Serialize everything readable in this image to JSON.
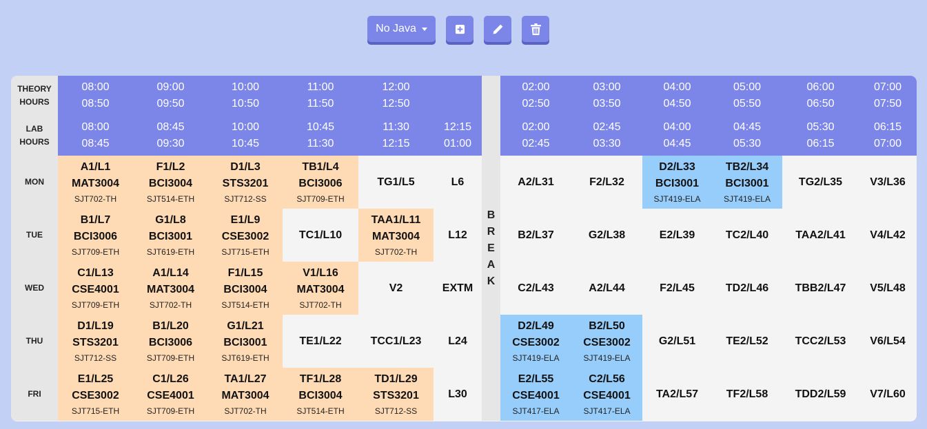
{
  "toolbar": {
    "dropdown_label": "No Java",
    "icons": [
      "plus-square-icon",
      "pencil-icon",
      "trash-icon"
    ]
  },
  "timetable": {
    "theory_label": [
      "THEORY",
      "HOURS"
    ],
    "lab_label": [
      "LAB",
      "HOURS"
    ],
    "break_letters": [
      "B",
      "R",
      "E",
      "A",
      "K"
    ],
    "theory_times": [
      [
        "08:00",
        "08:50"
      ],
      [
        "09:00",
        "09:50"
      ],
      [
        "10:00",
        "10:50"
      ],
      [
        "11:00",
        "11:50"
      ],
      [
        "12:00",
        "12:50"
      ],
      [
        "",
        ""
      ],
      [
        "02:00",
        "02:50"
      ],
      [
        "03:00",
        "03:50"
      ],
      [
        "04:00",
        "04:50"
      ],
      [
        "05:00",
        "05:50"
      ],
      [
        "06:00",
        "06:50"
      ],
      [
        "07:00",
        "07:50"
      ]
    ],
    "lab_times": [
      [
        "08:00",
        "08:45"
      ],
      [
        "08:45",
        "09:30"
      ],
      [
        "10:00",
        "10:45"
      ],
      [
        "10:45",
        "11:30"
      ],
      [
        "11:30",
        "12:15"
      ],
      [
        "12:15",
        "01:00"
      ],
      [
        "02:00",
        "02:45"
      ],
      [
        "02:45",
        "03:30"
      ],
      [
        "04:00",
        "04:45"
      ],
      [
        "04:45",
        "05:30"
      ],
      [
        "05:30",
        "06:15"
      ],
      [
        "06:15",
        "07:00"
      ]
    ],
    "days": [
      {
        "name": "MON",
        "cells": [
          {
            "slot": "A1/L1",
            "course": "MAT3004",
            "room": "SJT702-TH",
            "type": "theory"
          },
          {
            "slot": "F1/L2",
            "course": "BCI3004",
            "room": "SJT514-ETH",
            "type": "theory"
          },
          {
            "slot": "D1/L3",
            "course": "STS3201",
            "room": "SJT712-SS",
            "type": "theory"
          },
          {
            "slot": "TB1/L4",
            "course": "BCI3006",
            "room": "SJT709-ETH",
            "type": "theory"
          },
          {
            "slot": "TG1/L5",
            "course": "",
            "room": "",
            "type": "empty"
          },
          {
            "slot": "L6",
            "course": "",
            "room": "",
            "type": "empty"
          },
          {
            "slot": "A2/L31",
            "course": "",
            "room": "",
            "type": "empty"
          },
          {
            "slot": "F2/L32",
            "course": "",
            "room": "",
            "type": "empty"
          },
          {
            "slot": "D2/L33",
            "course": "BCI3001",
            "room": "SJT419-ELA",
            "type": "lab"
          },
          {
            "slot": "TB2/L34",
            "course": "BCI3001",
            "room": "SJT419-ELA",
            "type": "lab"
          },
          {
            "slot": "TG2/L35",
            "course": "",
            "room": "",
            "type": "empty"
          },
          {
            "slot": "V3/L36",
            "course": "",
            "room": "",
            "type": "empty"
          }
        ]
      },
      {
        "name": "TUE",
        "cells": [
          {
            "slot": "B1/L7",
            "course": "BCI3006",
            "room": "SJT709-ETH",
            "type": "theory"
          },
          {
            "slot": "G1/L8",
            "course": "BCI3001",
            "room": "SJT619-ETH",
            "type": "theory"
          },
          {
            "slot": "E1/L9",
            "course": "CSE3002",
            "room": "SJT715-ETH",
            "type": "theory"
          },
          {
            "slot": "TC1/L10",
            "course": "",
            "room": "",
            "type": "empty"
          },
          {
            "slot": "TAA1/L11",
            "course": "MAT3004",
            "room": "SJT702-TH",
            "type": "theory"
          },
          {
            "slot": "L12",
            "course": "",
            "room": "",
            "type": "empty"
          },
          {
            "slot": "B2/L37",
            "course": "",
            "room": "",
            "type": "empty"
          },
          {
            "slot": "G2/L38",
            "course": "",
            "room": "",
            "type": "empty"
          },
          {
            "slot": "E2/L39",
            "course": "",
            "room": "",
            "type": "empty"
          },
          {
            "slot": "TC2/L40",
            "course": "",
            "room": "",
            "type": "empty"
          },
          {
            "slot": "TAA2/L41",
            "course": "",
            "room": "",
            "type": "empty"
          },
          {
            "slot": "V4/L42",
            "course": "",
            "room": "",
            "type": "empty"
          }
        ]
      },
      {
        "name": "WED",
        "cells": [
          {
            "slot": "C1/L13",
            "course": "CSE4001",
            "room": "SJT709-ETH",
            "type": "theory"
          },
          {
            "slot": "A1/L14",
            "course": "MAT3004",
            "room": "SJT702-TH",
            "type": "theory"
          },
          {
            "slot": "F1/L15",
            "course": "BCI3004",
            "room": "SJT514-ETH",
            "type": "theory"
          },
          {
            "slot": "V1/L16",
            "course": "MAT3004",
            "room": "SJT702-TH",
            "type": "theory"
          },
          {
            "slot": "V2",
            "course": "",
            "room": "",
            "type": "empty"
          },
          {
            "slot": "EXTM",
            "course": "",
            "room": "",
            "type": "empty"
          },
          {
            "slot": "C2/L43",
            "course": "",
            "room": "",
            "type": "empty"
          },
          {
            "slot": "A2/L44",
            "course": "",
            "room": "",
            "type": "empty"
          },
          {
            "slot": "F2/L45",
            "course": "",
            "room": "",
            "type": "empty"
          },
          {
            "slot": "TD2/L46",
            "course": "",
            "room": "",
            "type": "empty"
          },
          {
            "slot": "TBB2/L47",
            "course": "",
            "room": "",
            "type": "empty"
          },
          {
            "slot": "V5/L48",
            "course": "",
            "room": "",
            "type": "empty"
          }
        ]
      },
      {
        "name": "THU",
        "cells": [
          {
            "slot": "D1/L19",
            "course": "STS3201",
            "room": "SJT712-SS",
            "type": "theory"
          },
          {
            "slot": "B1/L20",
            "course": "BCI3006",
            "room": "SJT709-ETH",
            "type": "theory"
          },
          {
            "slot": "G1/L21",
            "course": "BCI3001",
            "room": "SJT619-ETH",
            "type": "theory"
          },
          {
            "slot": "TE1/L22",
            "course": "",
            "room": "",
            "type": "empty"
          },
          {
            "slot": "TCC1/L23",
            "course": "",
            "room": "",
            "type": "empty"
          },
          {
            "slot": "L24",
            "course": "",
            "room": "",
            "type": "empty"
          },
          {
            "slot": "D2/L49",
            "course": "CSE3002",
            "room": "SJT419-ELA",
            "type": "lab"
          },
          {
            "slot": "B2/L50",
            "course": "CSE3002",
            "room": "SJT419-ELA",
            "type": "lab"
          },
          {
            "slot": "G2/L51",
            "course": "",
            "room": "",
            "type": "empty"
          },
          {
            "slot": "TE2/L52",
            "course": "",
            "room": "",
            "type": "empty"
          },
          {
            "slot": "TCC2/L53",
            "course": "",
            "room": "",
            "type": "empty"
          },
          {
            "slot": "V6/L54",
            "course": "",
            "room": "",
            "type": "empty"
          }
        ]
      },
      {
        "name": "FRI",
        "cells": [
          {
            "slot": "E1/L25",
            "course": "CSE3002",
            "room": "SJT715-ETH",
            "type": "theory"
          },
          {
            "slot": "C1/L26",
            "course": "CSE4001",
            "room": "SJT709-ETH",
            "type": "theory"
          },
          {
            "slot": "TA1/L27",
            "course": "MAT3004",
            "room": "SJT702-TH",
            "type": "theory"
          },
          {
            "slot": "TF1/L28",
            "course": "BCI3004",
            "room": "SJT514-ETH",
            "type": "theory"
          },
          {
            "slot": "TD1/L29",
            "course": "STS3201",
            "room": "SJT712-SS",
            "type": "theory"
          },
          {
            "slot": "L30",
            "course": "",
            "room": "",
            "type": "empty"
          },
          {
            "slot": "E2/L55",
            "course": "CSE4001",
            "room": "SJT417-ELA",
            "type": "lab"
          },
          {
            "slot": "C2/L56",
            "course": "CSE4001",
            "room": "SJT417-ELA",
            "type": "lab"
          },
          {
            "slot": "TA2/L57",
            "course": "",
            "room": "",
            "type": "empty"
          },
          {
            "slot": "TF2/L58",
            "course": "",
            "room": "",
            "type": "empty"
          },
          {
            "slot": "TDD2/L59",
            "course": "",
            "room": "",
            "type": "empty"
          },
          {
            "slot": "V7/L60",
            "course": "",
            "room": "",
            "type": "empty"
          }
        ]
      }
    ]
  }
}
